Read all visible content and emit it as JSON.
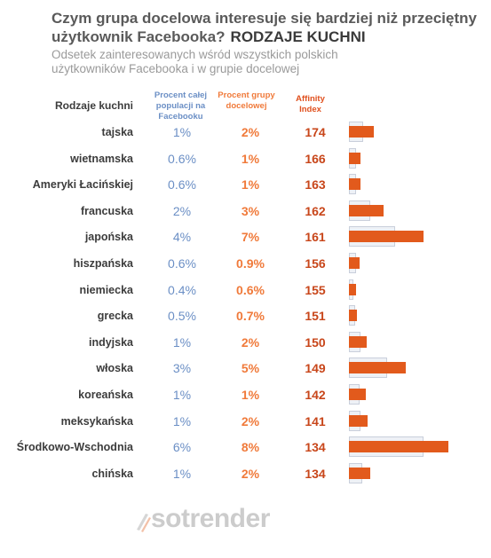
{
  "header": {
    "title": "Czym grupa docelowa interesuje się bardziej niż przeciętny użytkownik Facebooka?",
    "title_tag": "RODZAJE KUCHNI",
    "subtitle": "Odsetek zainteresowanych wśród wszystkich polskich użytkowników Facebooka i w grupie docelowej"
  },
  "columns": {
    "category": "Rodzaje kuchni",
    "population": "Procent całej populacji na Facebooku",
    "group": "Procent grupy docelowej",
    "affinity": "Affinity Index"
  },
  "rows": [
    {
      "name": "tajska",
      "pop": "1%",
      "grp": "2%",
      "aff": "174"
    },
    {
      "name": "wietnamska",
      "pop": "0.6%",
      "grp": "1%",
      "aff": "166"
    },
    {
      "name": "Ameryki Łacińskiej",
      "pop": "0.6%",
      "grp": "1%",
      "aff": "163"
    },
    {
      "name": "francuska",
      "pop": "2%",
      "grp": "3%",
      "aff": "162"
    },
    {
      "name": "japońska",
      "pop": "4%",
      "grp": "7%",
      "aff": "161"
    },
    {
      "name": "hiszpańska",
      "pop": "0.6%",
      "grp": "0.9%",
      "aff": "156"
    },
    {
      "name": "niemiecka",
      "pop": "0.4%",
      "grp": "0.6%",
      "aff": "155"
    },
    {
      "name": "grecka",
      "pop": "0.5%",
      "grp": "0.7%",
      "aff": "151"
    },
    {
      "name": "indyjska",
      "pop": "1%",
      "grp": "2%",
      "aff": "150"
    },
    {
      "name": "włoska",
      "pop": "3%",
      "grp": "5%",
      "aff": "149"
    },
    {
      "name": "koreańska",
      "pop": "1%",
      "grp": "1%",
      "aff": "142"
    },
    {
      "name": "meksykańska",
      "pop": "1%",
      "grp": "2%",
      "aff": "141"
    },
    {
      "name": "Środkowo-Wschodnia",
      "pop": "6%",
      "grp": "8%",
      "aff": "134"
    },
    {
      "name": "chińska",
      "pop": "1%",
      "grp": "2%",
      "aff": "134"
    }
  ],
  "brand": {
    "logo_text": "sotrender"
  },
  "colors": {
    "population": "#6b8fc5",
    "group": "#f07a3a",
    "affinity": "#c8461a",
    "bar": "#e25a1c"
  },
  "chart_data": {
    "type": "bar",
    "categories": [
      "tajska",
      "wietnamska",
      "Ameryki Łacińskiej",
      "francuska",
      "japońska",
      "hiszpańska",
      "niemiecka",
      "grecka",
      "indyjska",
      "włoska",
      "koreańska",
      "meksykańska",
      "Środkowo-Wschodnia",
      "chińska"
    ],
    "series": [
      {
        "name": "Procent całej populacji na Facebooku",
        "values": [
          1.2,
          0.6,
          0.6,
          1.8,
          3.9,
          0.6,
          0.4,
          0.5,
          1.0,
          3.2,
          0.9,
          1.0,
          6.3,
          1.1
        ]
      },
      {
        "name": "Procent grupy docelowej",
        "values": [
          2.1,
          1.0,
          1.0,
          2.9,
          6.3,
          0.9,
          0.6,
          0.7,
          1.5,
          4.8,
          1.4,
          1.6,
          8.4,
          1.8
        ]
      }
    ],
    "affinity": [
      174,
      166,
      163,
      162,
      161,
      156,
      155,
      151,
      150,
      149,
      142,
      141,
      134,
      134
    ],
    "orientation": "horizontal",
    "xlim": [
      0,
      8.4
    ]
  }
}
